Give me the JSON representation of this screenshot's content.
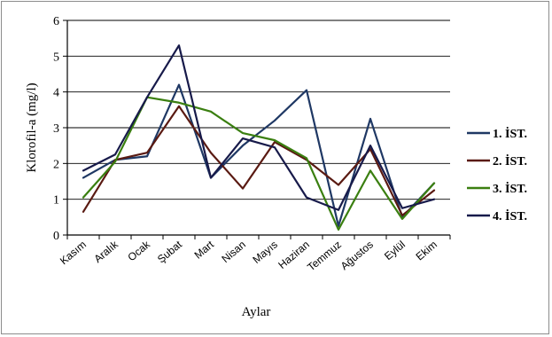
{
  "chart_data": {
    "type": "line",
    "categories": [
      "Kasım",
      "Aralık",
      "Ocak",
      "Şubat",
      "Mart",
      "Nisan",
      "Mayıs",
      "Haziran",
      "Temmuz",
      "Ağustos",
      "Eylül",
      "Ekim"
    ],
    "series": [
      {
        "name": "1. İST.",
        "color": "#1f3864",
        "values": [
          1.6,
          2.1,
          2.2,
          4.2,
          1.6,
          2.5,
          3.2,
          4.05,
          0.25,
          3.25,
          0.5,
          1.45
        ]
      },
      {
        "name": "2. İST.",
        "color": "#5a1a12",
        "values": [
          0.65,
          2.1,
          2.3,
          3.6,
          2.3,
          1.3,
          2.6,
          2.1,
          1.4,
          2.4,
          0.55,
          1.25
        ]
      },
      {
        "name": "3. İST.",
        "color": "#3a7f10",
        "values": [
          1.05,
          2.05,
          3.85,
          3.7,
          3.45,
          2.85,
          2.65,
          2.15,
          0.15,
          1.8,
          0.45,
          1.45
        ]
      },
      {
        "name": "4. İST.",
        "color": "#171a4a",
        "values": [
          1.8,
          2.25,
          3.85,
          5.3,
          1.6,
          2.7,
          2.45,
          1.05,
          0.7,
          2.5,
          0.75,
          1.0
        ]
      }
    ],
    "ylabel": "Klorofil-a (mg/l)",
    "xlabel": "Aylar",
    "ylim": [
      0,
      6
    ],
    "yticks": [
      0,
      1,
      2,
      3,
      4,
      5,
      6
    ],
    "grid": true,
    "legend": "right"
  }
}
